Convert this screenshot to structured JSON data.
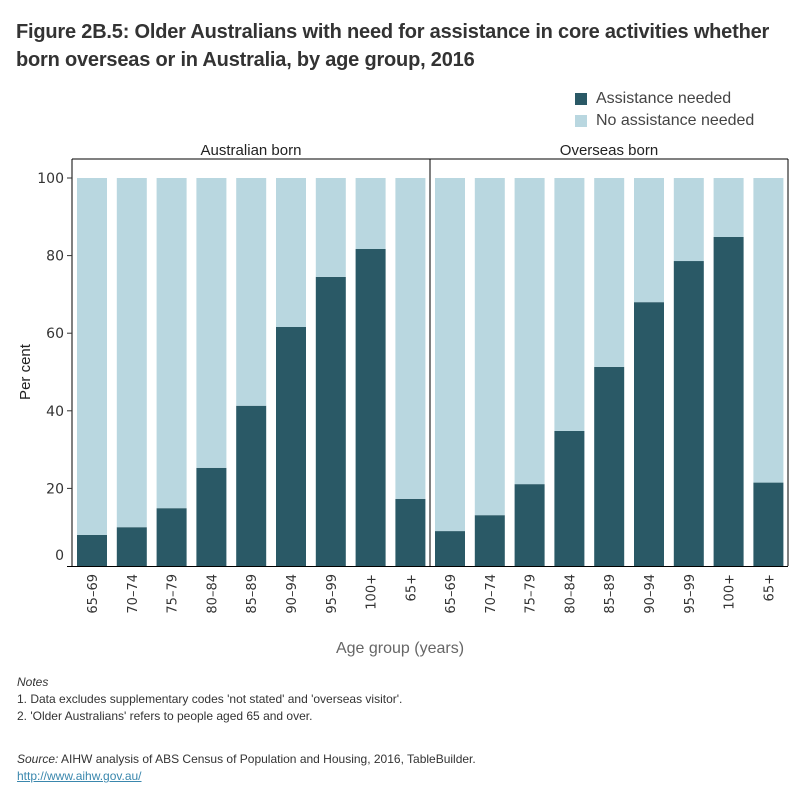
{
  "title": "Figure 2B.5: Older Australians with need for assistance in core activities whether born overseas or in Australia, by age group, 2016",
  "legend": {
    "items": [
      {
        "label": "Assistance needed",
        "color": "#2a5966"
      },
      {
        "label": "No assistance needed",
        "color": "#b9d7e0"
      }
    ]
  },
  "notes": {
    "heading": "Notes",
    "lines": [
      "1. Data excludes supplementary codes 'not stated' and 'overseas visitor'.",
      "2. 'Older Australians' refers to people aged 65 and over."
    ]
  },
  "source": {
    "label": "Source:",
    "text": " AIHW analysis of ABS Census of Population and Housing, 2016, TableBuilder.",
    "link": "http://www.aihw.gov.au/"
  },
  "chart_data": {
    "type": "bar",
    "stacked": true,
    "title": "Figure 2B.5: Older Australians with need for assistance in core activities whether born overseas or in Australia, by age group, 2016",
    "xlabel": "Age group (years)",
    "ylabel": "Per cent",
    "ylim": [
      0,
      100
    ],
    "yticks": [
      0,
      20,
      40,
      60,
      80,
      100
    ],
    "grid": false,
    "legend_position": "top-right",
    "categories": [
      "65–69",
      "70–74",
      "75–79",
      "80–84",
      "85–89",
      "90–94",
      "95–99",
      "100+",
      "65+"
    ],
    "panels": [
      {
        "name": "Australian born",
        "series": [
          {
            "name": "Assistance needed",
            "values": [
              8.0,
              10.0,
              14.9,
              25.3,
              41.3,
              61.6,
              74.5,
              81.7,
              17.3
            ]
          },
          {
            "name": "No assistance needed",
            "values": [
              92.0,
              90.0,
              85.1,
              74.7,
              58.7,
              38.4,
              25.5,
              18.3,
              82.7
            ]
          }
        ]
      },
      {
        "name": "Overseas born",
        "series": [
          {
            "name": "Assistance needed",
            "values": [
              9.0,
              13.1,
              21.1,
              34.8,
              51.3,
              68.0,
              78.6,
              84.8,
              21.5
            ]
          },
          {
            "name": "No assistance needed",
            "values": [
              91.0,
              86.9,
              78.9,
              65.2,
              48.7,
              32.0,
              21.4,
              15.2,
              78.5
            ]
          }
        ]
      }
    ]
  }
}
